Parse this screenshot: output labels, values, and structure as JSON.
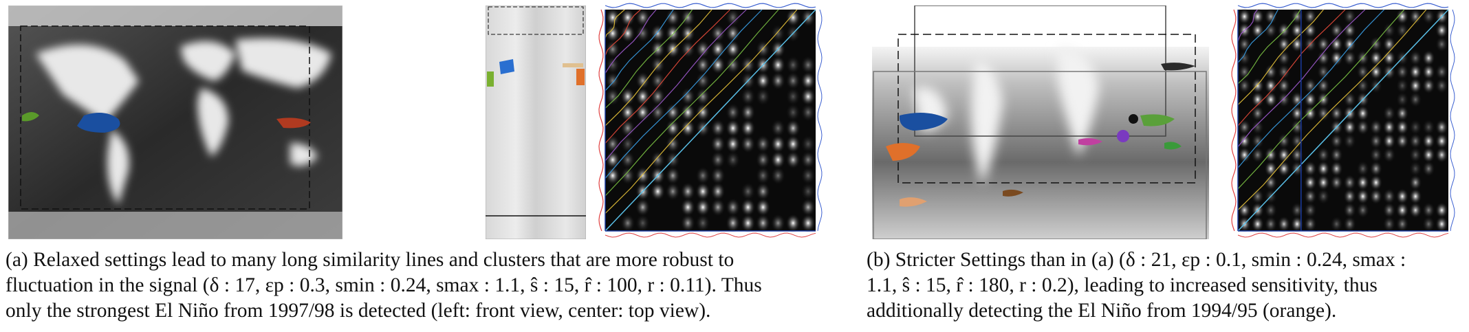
{
  "captions": {
    "a": [
      "(a) Relaxed settings lead to many long similarity lines and clusters that are more robust to",
      "fluctuation in the signal (δ : 17, εp : 0.3, smin : 0.24, smax : 1.1, ŝ : 15, r̂ : 100, r : 0.11). Thus",
      "only the strongest El Niño from 1997/98 is detected (left: front view, center: top view)."
    ],
    "b": [
      "(b) Stricter Settings than in (a) (δ : 21, εp : 0.1, smin : 0.24, smax :",
      "1.1, ŝ : 15, r̂ : 180, r : 0.2), leading to increased sensitivity, thus",
      "additionally detecting the El Niño from 1994/95 (orange)."
    ]
  },
  "colors": {
    "el_nino_1997": "#1a4fa0",
    "el_nino_1994": "#e0702a",
    "similarity_lines": [
      "#e84a3a",
      "#e8c33a",
      "#7ac043",
      "#3aa0e8",
      "#a05ad0"
    ],
    "signal_top": "#3a5fd0",
    "signal_left": "#e04040",
    "matrix_bg": "#0a0a0a"
  }
}
